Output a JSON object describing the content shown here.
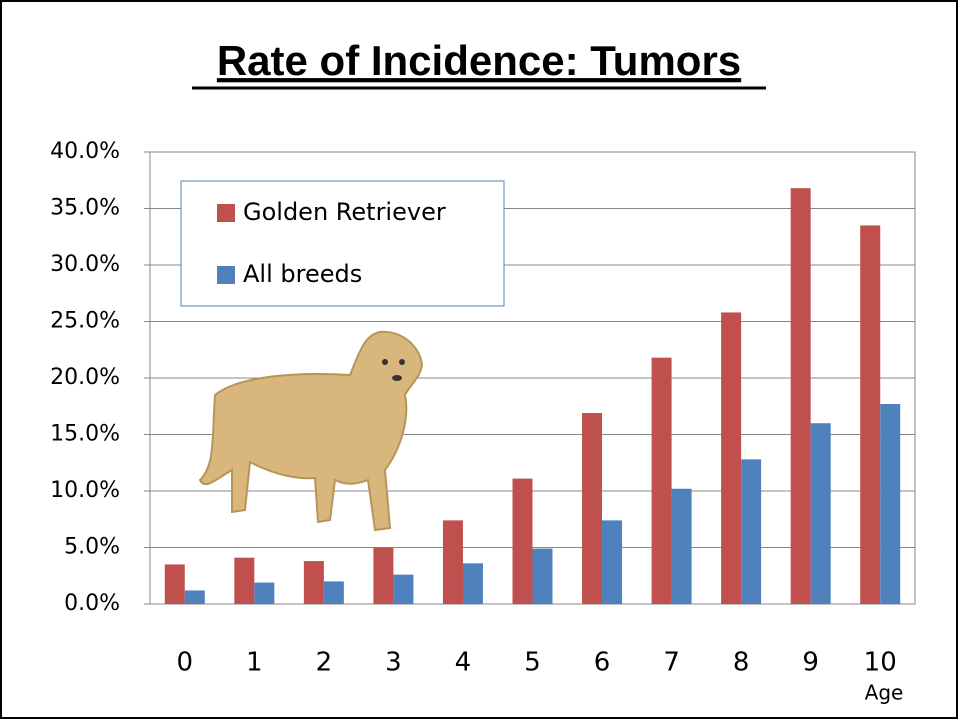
{
  "chart_data": {
    "type": "bar",
    "title": "Rate of Incidence: Tumors",
    "x_label": "Age",
    "categories": [
      "0",
      "1",
      "2",
      "3",
      "4",
      "5",
      "6",
      "7",
      "8",
      "9",
      "10"
    ],
    "series": [
      {
        "name": "Golden Retriever",
        "color": "#c0504d",
        "values": [
          3.5,
          4.1,
          3.8,
          5.0,
          7.4,
          11.1,
          16.9,
          21.8,
          25.8,
          36.8,
          33.5
        ]
      },
      {
        "name": "All breeds",
        "color": "#4f81bd",
        "values": [
          1.2,
          1.9,
          2.0,
          2.6,
          3.6,
          4.9,
          7.4,
          10.2,
          12.8,
          16.0,
          17.7
        ]
      }
    ],
    "ylim": [
      0,
      40
    ],
    "yticks": [
      {
        "value": 0,
        "label": "0.0%"
      },
      {
        "value": 5,
        "label": "5.0%"
      },
      {
        "value": 10,
        "label": "10.0%"
      },
      {
        "value": 15,
        "label": "15.0%"
      },
      {
        "value": 20,
        "label": "20.0%"
      },
      {
        "value": 25,
        "label": "25.0%"
      },
      {
        "value": 30,
        "label": "30.0%"
      },
      {
        "value": 35,
        "label": "35.0%"
      },
      {
        "value": 40,
        "label": "40.0%"
      }
    ],
    "grid": true,
    "legend": "top-left"
  }
}
